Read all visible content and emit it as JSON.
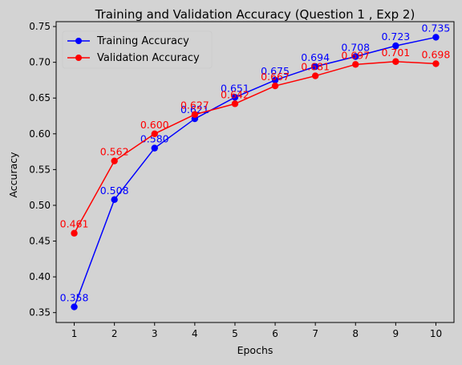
{
  "chart_data": {
    "type": "line",
    "title": "Training and Validation Accuracy (Question 1 , Exp 2)",
    "xlabel": "Epochs",
    "ylabel": "Accuracy",
    "x": [
      1,
      2,
      3,
      4,
      5,
      6,
      7,
      8,
      9,
      10
    ],
    "xlim": [
      0.55,
      10.45
    ],
    "ylim": [
      0.3362,
      0.7568
    ],
    "xticks": [
      "1",
      "2",
      "3",
      "4",
      "5",
      "6",
      "7",
      "8",
      "9",
      "10"
    ],
    "yticks": [
      "0.35",
      "0.40",
      "0.45",
      "0.50",
      "0.55",
      "0.60",
      "0.65",
      "0.70",
      "0.75"
    ],
    "grid": false,
    "legend_position": "top-left",
    "series": [
      {
        "name": "Training Accuracy",
        "color": "#0000ff",
        "marker": "circle",
        "values": [
          0.358,
          0.508,
          0.58,
          0.621,
          0.651,
          0.675,
          0.694,
          0.708,
          0.723,
          0.735
        ],
        "labels": [
          "0.358",
          "0.508",
          "0.580",
          "0.621",
          "0.651",
          "0.675",
          "0.694",
          "0.708",
          "0.723",
          "0.735"
        ]
      },
      {
        "name": "Validation Accuracy",
        "color": "#ff0000",
        "marker": "circle",
        "values": [
          0.461,
          0.562,
          0.6,
          0.627,
          0.642,
          0.667,
          0.681,
          0.697,
          0.701,
          0.698
        ],
        "labels": [
          "0.461",
          "0.562",
          "0.600",
          "0.627",
          "0.642",
          "0.667",
          "0.681",
          "0.697",
          "0.701",
          "0.698"
        ]
      }
    ]
  }
}
